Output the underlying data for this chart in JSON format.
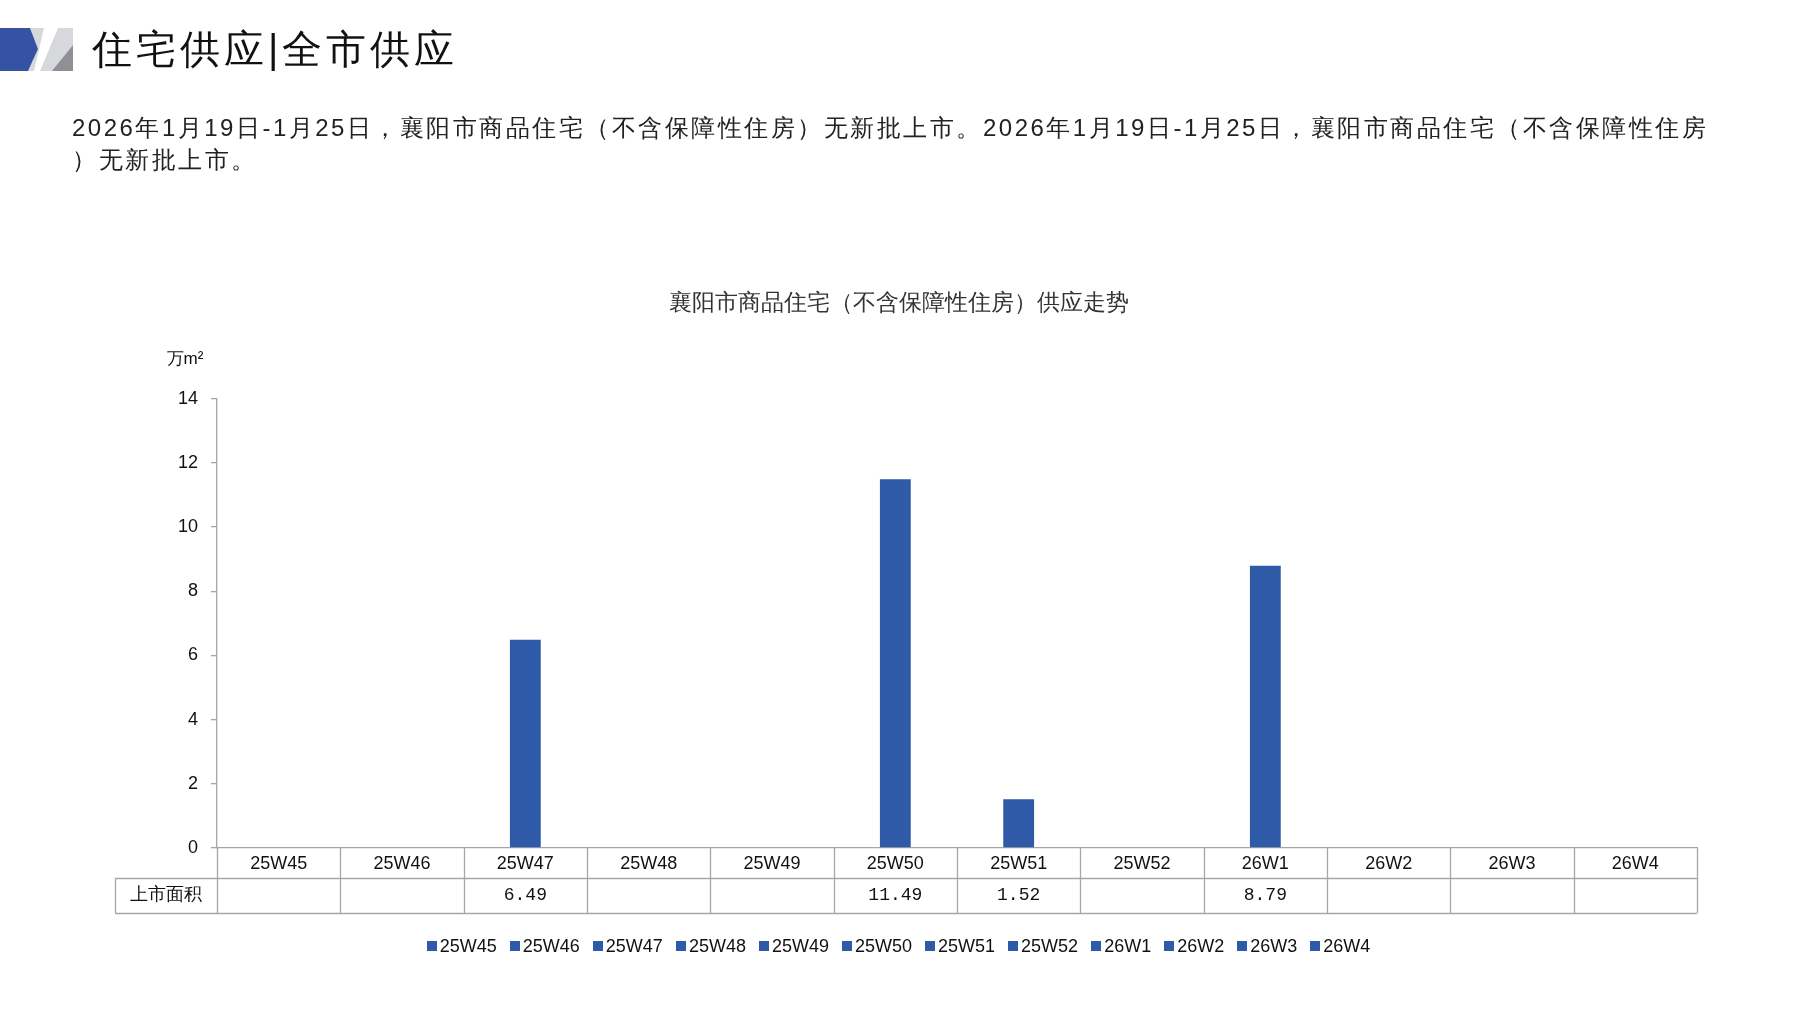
{
  "chart_data": {
    "type": "bar",
    "title": "襄阳市商品住宅（不含保障性住房）供应走势",
    "ylabel": "万m²",
    "annotations": [
      "住宅供应|全市供应",
      "2026年1月19日-1月25日，襄阳市商品住宅（不含保障性住房）无新批上市。2026年1月19日-1月25日，襄阳市商品住宅（不含保障性住房）无新批上市。"
    ],
    "categories": [
      "25W45",
      "25W46",
      "25W47",
      "25W48",
      "25W49",
      "25W50",
      "25W51",
      "25W52",
      "26W1",
      "26W2",
      "26W3",
      "26W4"
    ],
    "series": [
      {
        "name": "上市面积",
        "colors": [
          "#2e5aa8",
          "#2e5aa8",
          "#2e5aa8",
          "#2e5aa8",
          "#2e5aa8",
          "#2e5aa8",
          "#2e5aa8",
          "#2e5aa8",
          "#2e5aa8",
          "#2e5aa8",
          "#2e5aa8",
          "#2e5aa8"
        ],
        "values": [
          null,
          null,
          6.49,
          null,
          null,
          11.49,
          1.52,
          null,
          8.79,
          null,
          null,
          null
        ]
      }
    ],
    "ylim": [
      0,
      14
    ],
    "yticks": [
      0,
      2,
      4,
      6,
      8,
      10,
      12,
      14
    ],
    "grid": false,
    "legend": "bottom",
    "data_labels": true
  }
}
